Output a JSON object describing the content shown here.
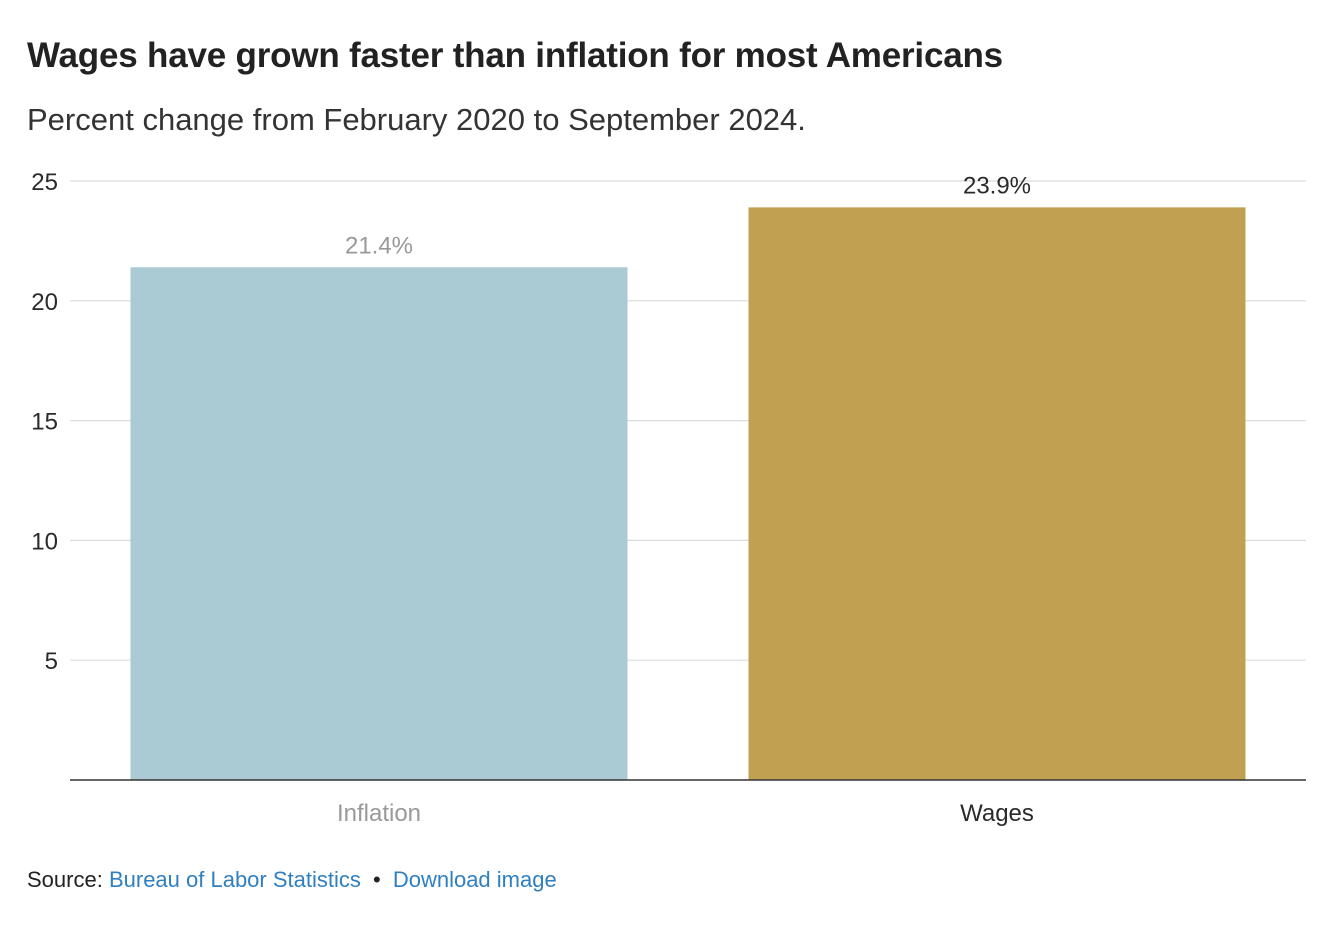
{
  "chart_data": {
    "type": "bar",
    "title": "Wages have grown faster than inflation for most Americans",
    "subtitle": "Percent change from February 2020 to September 2024.",
    "categories": [
      "Inflation",
      "Wages"
    ],
    "values": [
      21.4,
      23.9
    ],
    "value_labels": [
      "21.4%",
      "23.9%"
    ],
    "colors": [
      "#aacbd4",
      "#c2a052"
    ],
    "label_colors": [
      "#999999",
      "#2a2a2a"
    ],
    "xlabel": "",
    "ylabel": "",
    "ylim": [
      0,
      25
    ],
    "yticks": [
      5,
      10,
      15,
      20,
      25
    ],
    "ytick_labels": [
      "5",
      "10",
      "15",
      "20",
      "25"
    ],
    "grid": true
  },
  "footer": {
    "source_label": "Source:",
    "source_link": "Bureau of Labor Statistics",
    "separator": "•",
    "download_link": "Download image"
  }
}
